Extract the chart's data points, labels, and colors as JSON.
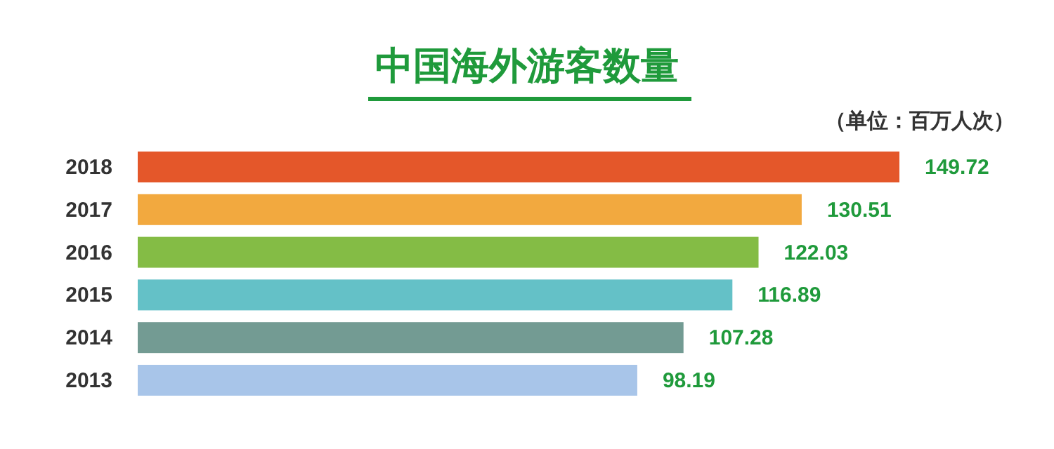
{
  "chart_data": {
    "type": "bar",
    "orientation": "horizontal",
    "title": "中国海外游客数量",
    "subtitle": "（单位：百万人次）",
    "categories": [
      "2018",
      "2017",
      "2016",
      "2015",
      "2014",
      "2013"
    ],
    "values": [
      149.72,
      130.51,
      122.03,
      116.89,
      107.28,
      98.19
    ],
    "colors": [
      "#e4572a",
      "#f2a93f",
      "#84bc45",
      "#64c1c7",
      "#739b93",
      "#a8c5e9"
    ],
    "data_labels": true
  }
}
